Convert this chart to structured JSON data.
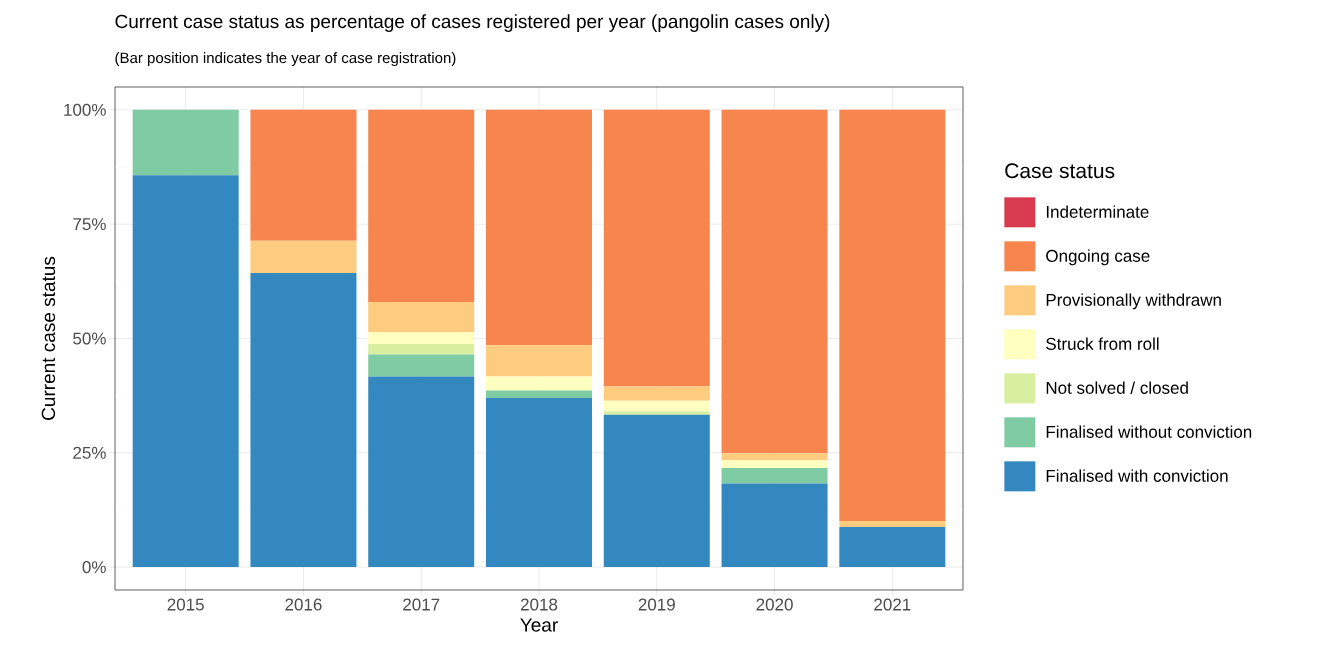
{
  "chart_data": {
    "type": "bar",
    "stacked": true,
    "title": "Current case status as percentage of cases registered per year (pangolin cases only)",
    "subtitle": "(Bar position indicates the year of case registration)",
    "xlabel": "Year",
    "ylabel": "Current case status",
    "legend_title": "Case status",
    "categories": [
      "2015",
      "2016",
      "2017",
      "2018",
      "2019",
      "2020",
      "2021"
    ],
    "series": [
      {
        "name": "Finalised with conviction",
        "color": "#3388bf",
        "values": [
          85.7,
          64.3,
          41.7,
          37.0,
          33.3,
          18.3,
          8.8
        ]
      },
      {
        "name": "Finalised without conviction",
        "color": "#7fcba3",
        "values": [
          14.3,
          0,
          4.8,
          1.6,
          0,
          3.4,
          0
        ]
      },
      {
        "name": "Not solved / closed",
        "color": "#d8efa0",
        "values": [
          0,
          0,
          2.3,
          0,
          0.8,
          0,
          0
        ]
      },
      {
        "name": "Struck from roll",
        "color": "#ffffbf",
        "values": [
          0,
          0,
          2.6,
          3.1,
          2.3,
          1.7,
          0
        ]
      },
      {
        "name": "Provisionally withdrawn",
        "color": "#fdcc7e",
        "values": [
          0,
          7.1,
          6.6,
          6.8,
          3.1,
          1.5,
          1.3
        ]
      },
      {
        "name": "Ongoing case",
        "color": "#f6854e",
        "values": [
          0,
          28.6,
          42.0,
          51.5,
          60.5,
          75.1,
          89.9
        ]
      },
      {
        "name": "Indeterminate",
        "color": "#d83a50",
        "values": [
          0,
          0,
          0,
          0,
          0,
          0,
          0
        ]
      }
    ],
    "ylim": [
      -5,
      105
    ],
    "yticks": [
      {
        "value": 0,
        "label": "0%"
      },
      {
        "value": 25,
        "label": "25%"
      },
      {
        "value": 50,
        "label": "50%"
      },
      {
        "value": 75,
        "label": "75%"
      },
      {
        "value": 100,
        "label": "100%"
      }
    ],
    "grid": true,
    "legend": "right"
  }
}
